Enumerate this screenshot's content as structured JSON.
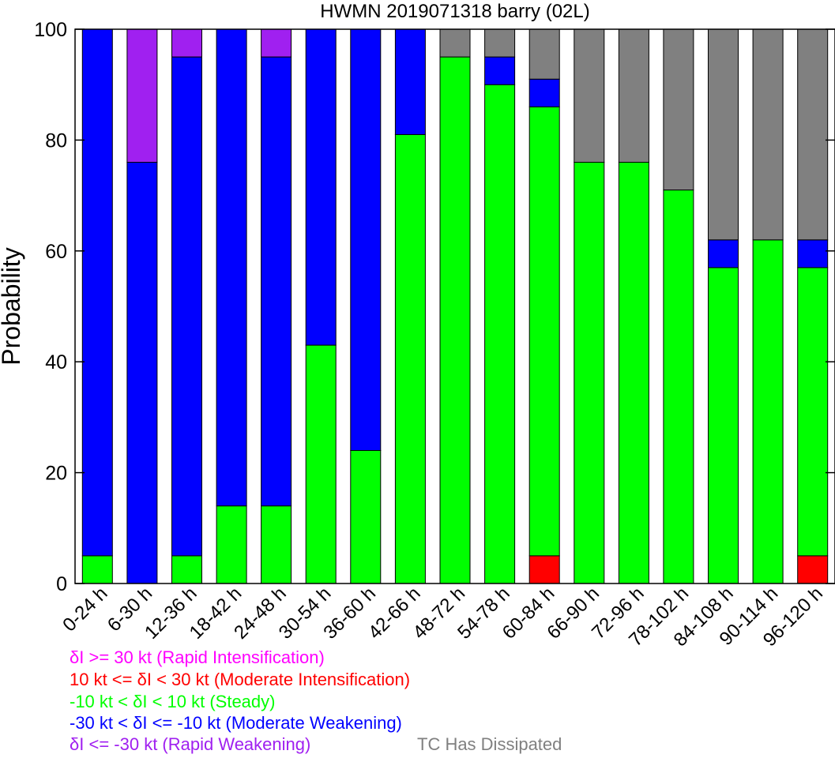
{
  "chart_data": {
    "type": "bar",
    "stacked": true,
    "title": "HWMN 2019071318 barry (02L)",
    "ylabel": "Probability",
    "xlabel": "",
    "ylim": [
      0,
      100
    ],
    "yticks": [
      0,
      20,
      40,
      60,
      80,
      100
    ],
    "categories": [
      "0-24 h",
      "6-30 h",
      "12-36 h",
      "18-42 h",
      "24-48 h",
      "30-54 h",
      "36-60 h",
      "42-66 h",
      "48-72 h",
      "54-78 h",
      "60-84 h",
      "66-90 h",
      "72-96 h",
      "78-102 h",
      "84-108 h",
      "90-114 h",
      "96-120 h"
    ],
    "series": [
      {
        "key": "moderate_intensification",
        "color": "#ff0000",
        "values": [
          0,
          0,
          0,
          0,
          0,
          0,
          0,
          0,
          0,
          0,
          5,
          0,
          0,
          0,
          0,
          0,
          5
        ]
      },
      {
        "key": "steady",
        "color": "#00ff00",
        "values": [
          5,
          0,
          5,
          14,
          14,
          43,
          24,
          81,
          95,
          90,
          81,
          76,
          76,
          71,
          57,
          62,
          52
        ]
      },
      {
        "key": "moderate_weakening",
        "color": "#0000ff",
        "values": [
          95,
          76,
          90,
          86,
          81,
          57,
          76,
          19,
          0,
          5,
          5,
          0,
          0,
          0,
          5,
          0,
          5
        ]
      },
      {
        "key": "rapid_weakening",
        "color": "#a020f0",
        "values": [
          0,
          24,
          5,
          0,
          5,
          0,
          0,
          0,
          0,
          0,
          0,
          0,
          0,
          0,
          0,
          0,
          0
        ]
      },
      {
        "key": "rapid_intensification",
        "color": "#ff00ff",
        "values": [
          0,
          0,
          0,
          0,
          0,
          0,
          0,
          0,
          0,
          0,
          0,
          0,
          0,
          0,
          0,
          0,
          0
        ]
      },
      {
        "key": "dissipated",
        "color": "#808080",
        "values": [
          0,
          0,
          0,
          0,
          0,
          0,
          0,
          0,
          5,
          5,
          9,
          24,
          24,
          29,
          38,
          38,
          38
        ]
      }
    ]
  },
  "legend": {
    "rapid_intensification": {
      "text": "δI >= 30 kt (Rapid Intensification)",
      "color": "#ff00ff"
    },
    "moderate_intensification": {
      "text": "10 kt <= δI < 30 kt (Moderate Intensification)",
      "color": "#ff0000"
    },
    "steady": {
      "text": "-10 kt < δI < 10 kt (Steady)",
      "color": "#00ff00"
    },
    "moderate_weakening": {
      "text": "-30 kt < δI <= -10 kt (Moderate Weakening)",
      "color": "#0000ff"
    },
    "rapid_weakening": {
      "text": "δI <= -30 kt (Rapid Weakening)",
      "color": "#a020f0"
    },
    "dissipated": {
      "text": "TC Has Dissipated",
      "color": "#808080"
    }
  }
}
